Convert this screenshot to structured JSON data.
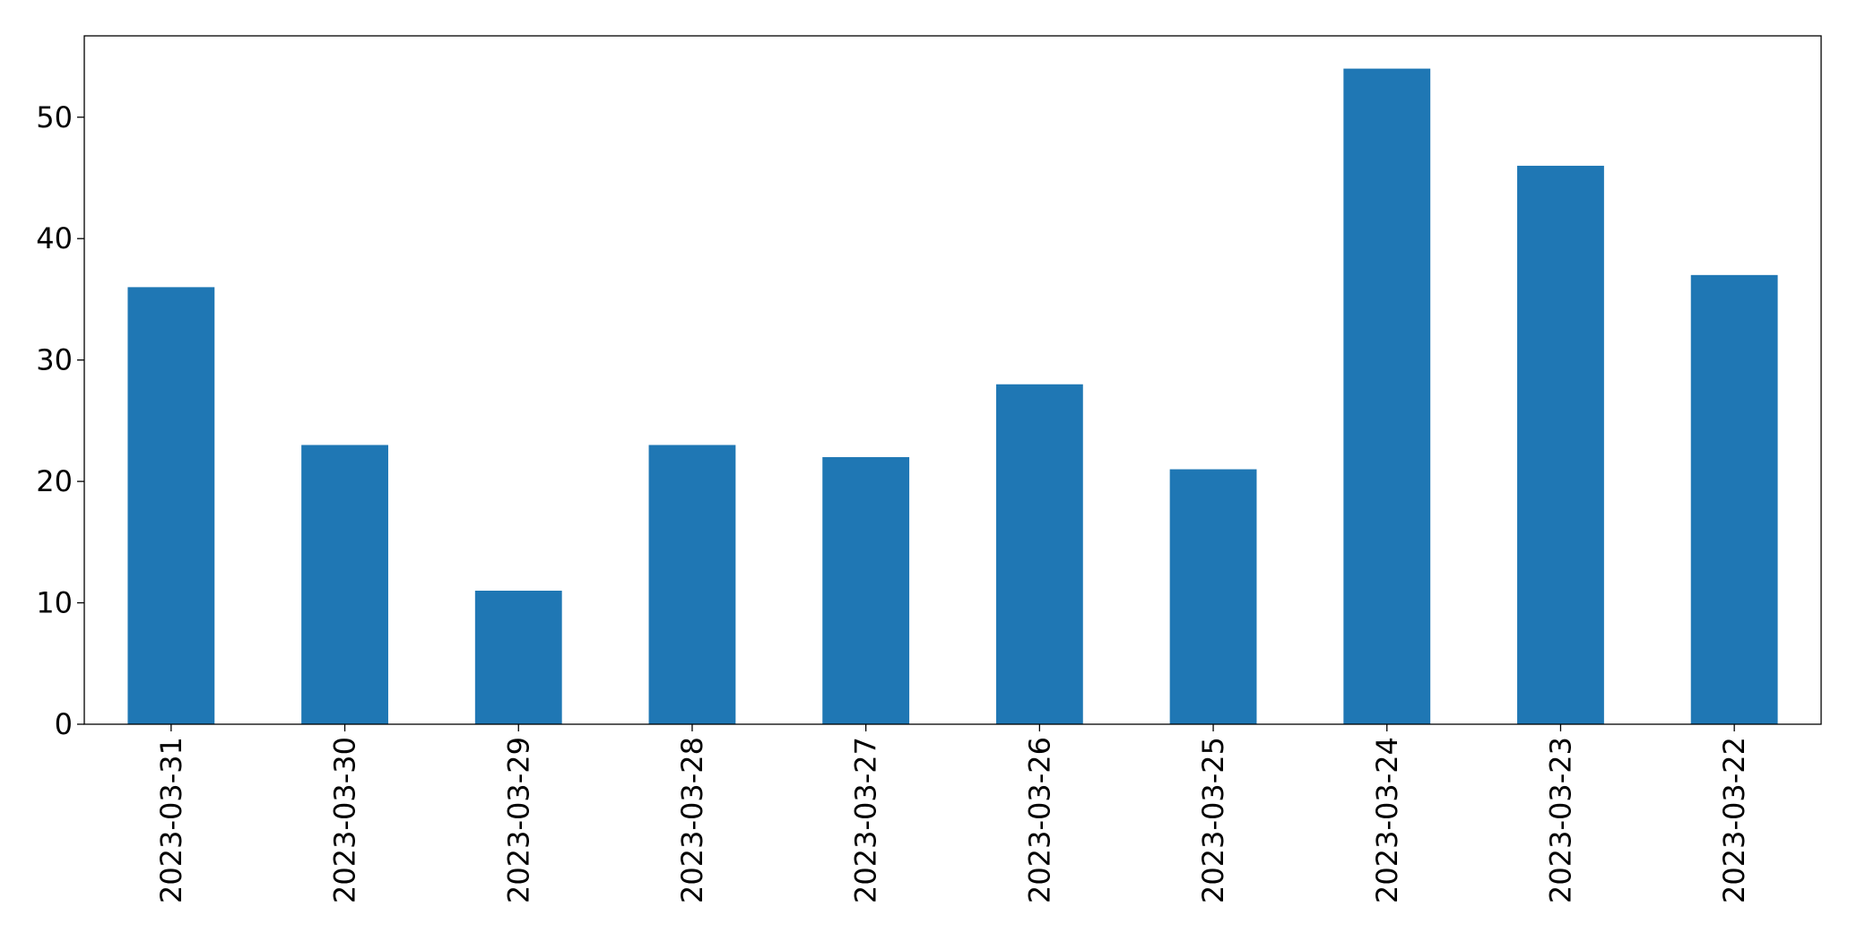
{
  "chart_data": {
    "type": "bar",
    "categories": [
      "2023-03-31",
      "2023-03-30",
      "2023-03-29",
      "2023-03-28",
      "2023-03-27",
      "2023-03-26",
      "2023-03-25",
      "2023-03-24",
      "2023-03-23",
      "2023-03-22"
    ],
    "values": [
      36,
      23,
      11,
      23,
      22,
      28,
      21,
      54,
      46,
      37
    ],
    "color": "#1f77b4",
    "ylim": [
      0,
      56.7
    ],
    "yticks": [
      0,
      10,
      20,
      30,
      40,
      50
    ],
    "grid": false
  }
}
